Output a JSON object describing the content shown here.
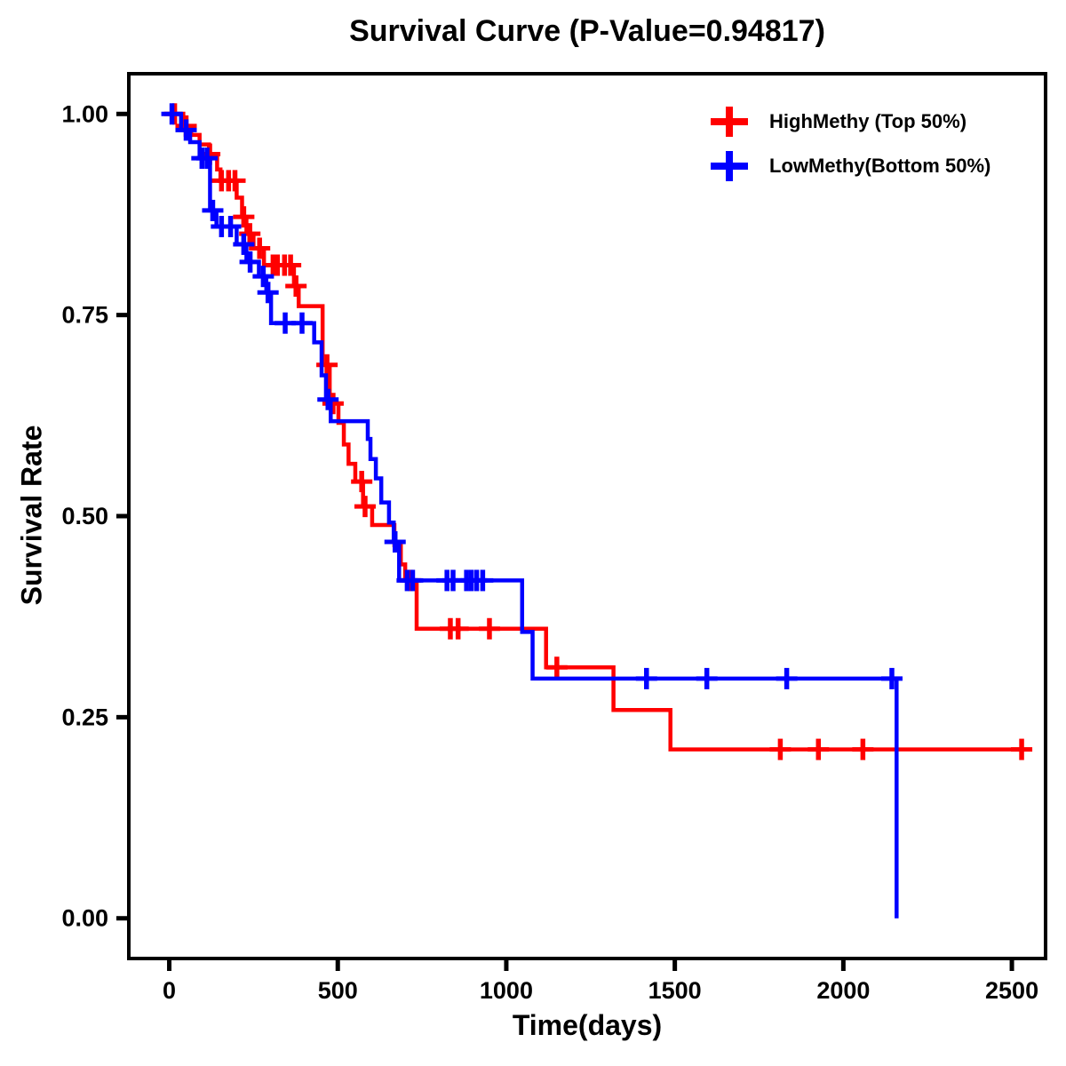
{
  "page": {
    "background": "#ffffff",
    "text_color": "#000000"
  },
  "chart_data": {
    "type": "line",
    "subtype": "kaplan-meier-step-survival",
    "title": "Survival Curve (P-Value=0.94817)",
    "p_value": "0.94817",
    "xlabel": "Time(days)",
    "ylabel": "Survival Rate",
    "xlim": [
      -120,
      2600
    ],
    "ylim": [
      -0.05,
      1.05
    ],
    "xticks": [
      0,
      500,
      1000,
      1500,
      2000,
      2500
    ],
    "xtick_labels": [
      "0",
      "500",
      "1000",
      "1500",
      "2000",
      "2500"
    ],
    "yticks": [
      0.0,
      0.25,
      0.5,
      0.75,
      1.0
    ],
    "ytick_labels": [
      "0.00",
      "0.25",
      "0.50",
      "0.75",
      "1.00"
    ],
    "grid": false,
    "legend_position": "top-right-inside",
    "axis_color": "#000000",
    "censor_marker": "plus",
    "series": [
      {
        "name": "HighMethy (Top 50%)",
        "color": "#ff0000",
        "end_time": 2558,
        "steps": [
          [
            0,
            1.0
          ],
          [
            40,
            0.985
          ],
          [
            65,
            0.974
          ],
          [
            90,
            0.962
          ],
          [
            118,
            0.95
          ],
          [
            142,
            0.931
          ],
          [
            152,
            0.917
          ],
          [
            200,
            0.896
          ],
          [
            216,
            0.872
          ],
          [
            229,
            0.851
          ],
          [
            250,
            0.833
          ],
          [
            281,
            0.812
          ],
          [
            370,
            0.786
          ],
          [
            384,
            0.761
          ],
          [
            455,
            0.688
          ],
          [
            476,
            0.64
          ],
          [
            502,
            0.616
          ],
          [
            518,
            0.589
          ],
          [
            532,
            0.565
          ],
          [
            552,
            0.543
          ],
          [
            575,
            0.512
          ],
          [
            602,
            0.489
          ],
          [
            668,
            0.464
          ],
          [
            687,
            0.44
          ],
          [
            700,
            0.42
          ],
          [
            734,
            0.36
          ],
          [
            1118,
            0.312
          ],
          [
            1318,
            0.259
          ],
          [
            1487,
            0.21
          ]
        ],
        "censor_times": [
          16,
          50,
          120,
          155,
          176,
          195,
          221,
          239,
          268,
          308,
          321,
          342,
          360,
          376,
          468,
          486,
          571,
          581,
          716,
          834,
          857,
          950,
          1150,
          1813,
          1926,
          2058,
          2529
        ]
      },
      {
        "name": "LowMethy(Bottom 50%)",
        "color": "#0000ff",
        "end_time": 2158,
        "steps": [
          [
            0,
            1.0
          ],
          [
            35,
            0.98
          ],
          [
            62,
            0.965
          ],
          [
            90,
            0.945
          ],
          [
            121,
            0.88
          ],
          [
            140,
            0.86
          ],
          [
            200,
            0.838
          ],
          [
            229,
            0.816
          ],
          [
            266,
            0.798
          ],
          [
            288,
            0.778
          ],
          [
            302,
            0.74
          ],
          [
            430,
            0.716
          ],
          [
            452,
            0.675
          ],
          [
            465,
            0.645
          ],
          [
            479,
            0.618
          ],
          [
            589,
            0.596
          ],
          [
            597,
            0.571
          ],
          [
            613,
            0.547
          ],
          [
            629,
            0.517
          ],
          [
            652,
            0.492
          ],
          [
            666,
            0.468
          ],
          [
            682,
            0.42
          ],
          [
            1047,
            0.356
          ],
          [
            1078,
            0.298
          ],
          [
            2158,
            0.0
          ]
        ],
        "censor_times": [
          8,
          50,
          97,
          112,
          129,
          155,
          182,
          221,
          240,
          279,
          293,
          344,
          394,
          471,
          670,
          706,
          722,
          824,
          842,
          882,
          896,
          912,
          930,
          1416,
          1595,
          1832,
          2144
        ]
      }
    ]
  }
}
